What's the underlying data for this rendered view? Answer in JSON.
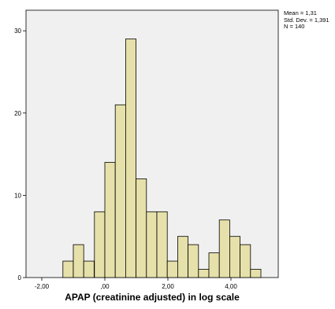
{
  "chart_data": {
    "type": "bar",
    "subtype": "histogram",
    "xlabel": "APAP (creatinine adjusted) in log scale",
    "ylabel": "",
    "bin_width": 0.33,
    "bins": [
      {
        "start": -1.33,
        "count": 2
      },
      {
        "start": -1.0,
        "count": 4
      },
      {
        "start": -0.67,
        "count": 2
      },
      {
        "start": -0.33,
        "count": 8
      },
      {
        "start": 0.0,
        "count": 14
      },
      {
        "start": 0.33,
        "count": 21
      },
      {
        "start": 0.66,
        "count": 29
      },
      {
        "start": 0.99,
        "count": 12
      },
      {
        "start": 1.32,
        "count": 8
      },
      {
        "start": 1.65,
        "count": 8
      },
      {
        "start": 1.98,
        "count": 2
      },
      {
        "start": 2.31,
        "count": 5
      },
      {
        "start": 2.64,
        "count": 4
      },
      {
        "start": 2.97,
        "count": 1
      },
      {
        "start": 3.3,
        "count": 3
      },
      {
        "start": 3.63,
        "count": 7
      },
      {
        "start": 3.96,
        "count": 5
      },
      {
        "start": 4.29,
        "count": 4
      },
      {
        "start": 4.62,
        "count": 1
      }
    ],
    "xlim": [
      -2.5,
      5.5
    ],
    "ylim": [
      0,
      32.5
    ],
    "x_ticks": [
      {
        "value": -2,
        "label": "-2,00"
      },
      {
        "value": 0,
        "label": ",00"
      },
      {
        "value": 2,
        "label": "2,00"
      },
      {
        "value": 4,
        "label": "4,00"
      }
    ],
    "y_ticks": [
      {
        "value": 0,
        "label": "0"
      },
      {
        "value": 10,
        "label": "10"
      },
      {
        "value": 20,
        "label": "20"
      },
      {
        "value": 30,
        "label": "30"
      }
    ],
    "stats": [
      "Mean = 1,31",
      "Std. Dev. = 1,391",
      "N = 140"
    ],
    "colors": {
      "bar_fill": "#e6e0aa",
      "bar_stroke": "#000000",
      "plot_background": "#f0f0f0"
    },
    "grid": false,
    "legend": "none"
  }
}
